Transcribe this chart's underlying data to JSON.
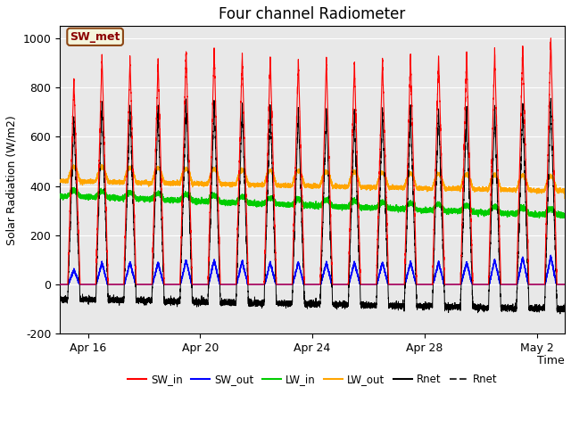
{
  "title": "Four channel Radiometer",
  "xlabel": "Time",
  "ylabel": "Solar Radiation (W/m2)",
  "ylim": [
    -200,
    1050
  ],
  "yticks": [
    -200,
    0,
    200,
    400,
    600,
    800,
    1000
  ],
  "background_color": "#e8e8e8",
  "annotation_text": "SW_met",
  "annotation_bg": "#f5f5dc",
  "annotation_border": "#8b4513",
  "SW_in_color": "#ff0000",
  "SW_out_color": "#0000ff",
  "LW_in_color": "#00cc00",
  "LW_out_color": "#ffa500",
  "Rnet_color": "#000000",
  "Rnet2_color": "#333333",
  "tick_positions": [
    1,
    5,
    9,
    13,
    17
  ],
  "tick_labels": [
    "Apr 16",
    "Apr 20",
    "Apr 24",
    "Apr 28",
    "May 2"
  ],
  "xlim": [
    0.0,
    18.0
  ]
}
